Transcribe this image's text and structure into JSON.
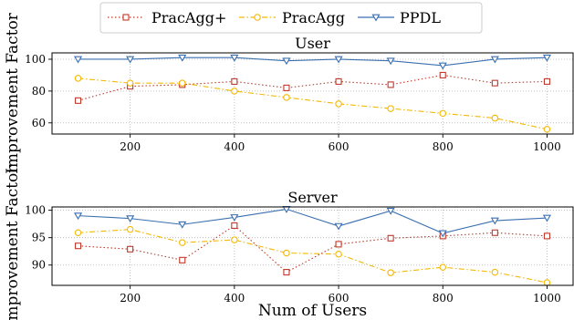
{
  "chart_data": {
    "type": "line",
    "legend": {
      "placement": "top-center",
      "entries": [
        {
          "name": "PracAgg+",
          "color": "#c0392b",
          "marker": "square",
          "line": "dotted"
        },
        {
          "name": "PracAgg",
          "color": "#f5b800",
          "marker": "circle",
          "line": "dashdot"
        },
        {
          "name": "PPDL",
          "color": "#3a6fb0",
          "marker": "triangle-down",
          "line": "solid"
        }
      ]
    },
    "ylabel": "Improvement Factor",
    "xlabel": "Num of Users",
    "xlim": [
      50,
      1050
    ],
    "xticks": [
      200,
      400,
      600,
      800,
      1000
    ],
    "grid": true,
    "panels": [
      {
        "title": "User",
        "ylim": [
          53,
          104
        ],
        "yticks": [
          60,
          80,
          100
        ],
        "x": [
          100,
          200,
          300,
          400,
          500,
          600,
          700,
          800,
          900,
          1000
        ],
        "series": [
          {
            "name": "PracAgg+",
            "values": [
              74,
              83,
              84,
              86,
              82,
              86,
              84,
              90,
              85,
              86
            ]
          },
          {
            "name": "PracAgg",
            "values": [
              88,
              85,
              85,
              80,
              76,
              72,
              69,
              66,
              63,
              56
            ]
          },
          {
            "name": "PPDL",
            "values": [
              100,
              100,
              101,
              101,
              99,
              100,
              99,
              96,
              100,
              101
            ]
          }
        ]
      },
      {
        "title": "Server",
        "ylim": [
          86.3,
          100.6
        ],
        "yticks": [
          90,
          95,
          100
        ],
        "x": [
          100,
          200,
          300,
          400,
          500,
          600,
          700,
          800,
          900,
          1000
        ],
        "series": [
          {
            "name": "PracAgg+",
            "values": [
              93.5,
              92.9,
              90.9,
              97.2,
              88.7,
              93.8,
              94.9,
              95.3,
              95.9,
              95.3
            ]
          },
          {
            "name": "PracAgg",
            "values": [
              95.9,
              96.5,
              94.1,
              94.6,
              92.2,
              92.0,
              88.6,
              89.6,
              88.7,
              86.8
            ]
          },
          {
            "name": "PPDL",
            "values": [
              99.0,
              98.5,
              97.4,
              98.7,
              100.2,
              97.1,
              99.9,
              95.8,
              98.1,
              98.6
            ]
          }
        ]
      }
    ]
  }
}
